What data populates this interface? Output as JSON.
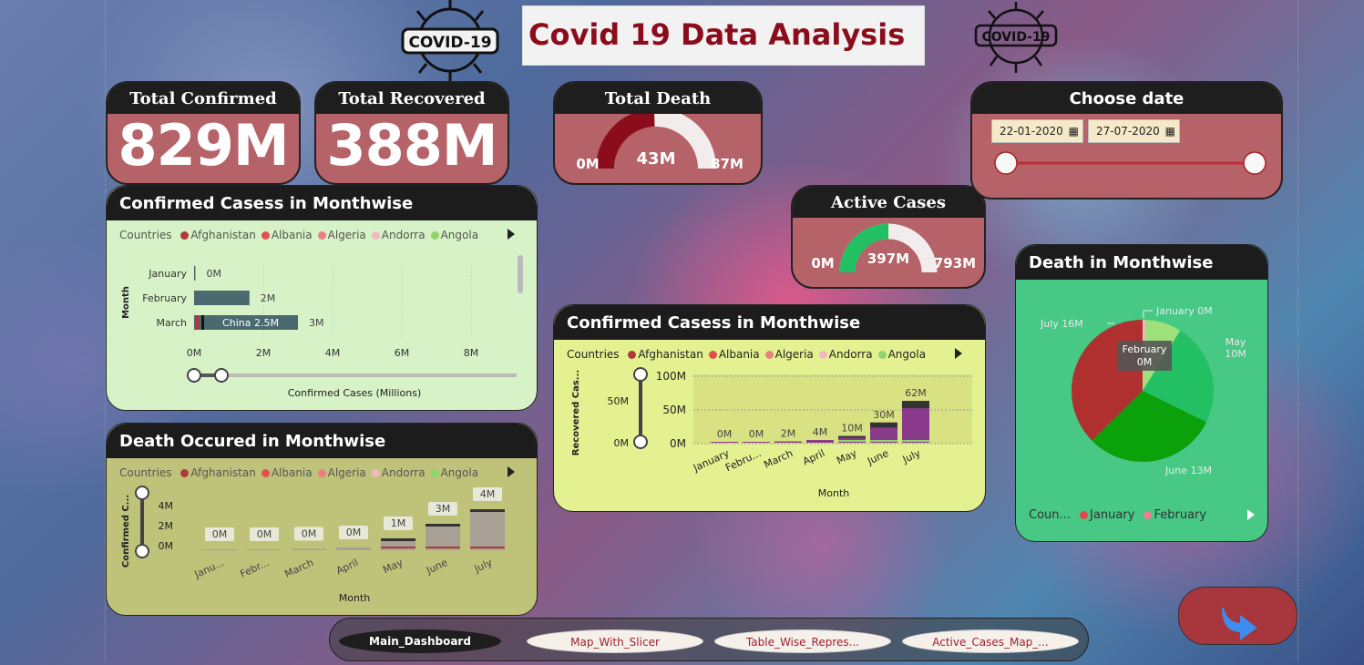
{
  "title": "Covid 19 Data Analysis",
  "logo_text": "COVID-19",
  "kpis": {
    "confirmed": {
      "label": "Total Confirmed",
      "value": "829M"
    },
    "recovered": {
      "label": "Total Recovered",
      "value": "388M"
    },
    "death": {
      "label": "Total Death",
      "min": "0M",
      "value": "43M",
      "max": "87M",
      "fraction": 0.49
    },
    "active": {
      "label": "Active Cases",
      "min": "0M",
      "value": "397M",
      "max": "793M",
      "fraction": 0.5
    }
  },
  "date_slicer": {
    "label": "Choose date",
    "start": "22-01-2020",
    "end": "27-07-2020"
  },
  "legend": {
    "title": "Countries",
    "items": [
      {
        "name": "Afghanistan",
        "color": "#b03a3a"
      },
      {
        "name": "Albania",
        "color": "#e05050"
      },
      {
        "name": "Algeria",
        "color": "#e88080"
      },
      {
        "name": "Andorra",
        "color": "#f0b8c0"
      },
      {
        "name": "Angola",
        "color": "#8fd46f"
      }
    ]
  },
  "confirmed_bar": {
    "title": "Confirmed Casess in Monthwise",
    "tooltip": "China 2.5M",
    "chart_data": {
      "type": "bar",
      "orientation": "horizontal",
      "categories": [
        "January",
        "February",
        "March"
      ],
      "values": [
        0,
        1.6,
        3
      ],
      "data_labels": [
        "0M",
        "2M",
        "3M"
      ],
      "xticks": [
        "0M",
        "2M",
        "4M",
        "6M",
        "8M"
      ],
      "xlim": [
        0,
        8
      ],
      "xlabel": "Confirmed Cases (Millions)",
      "ylabel": "Month"
    }
  },
  "death_col": {
    "title": "Death Occured in Monthwise",
    "chart_data": {
      "type": "bar",
      "categories": [
        "Janu...",
        "Febr...",
        "March",
        "April",
        "May",
        "June",
        "July"
      ],
      "values": [
        0.05,
        0.1,
        0.15,
        0.3,
        1.3,
        2.9,
        4.5
      ],
      "data_labels": [
        "0M",
        "0M",
        "0M",
        "0M",
        "1M",
        "3M",
        "4M"
      ],
      "yticks": [
        "4M",
        "2M",
        "0M"
      ],
      "ylim": [
        0,
        5
      ],
      "xlabel": "Month",
      "ylabel": "Confirmed C..."
    }
  },
  "recovered_col": {
    "title": "Confirmed Casess in Monthwise",
    "chart_data": {
      "type": "bar",
      "categories": [
        "January",
        "Febru...",
        "March",
        "April",
        "May",
        "June",
        "July"
      ],
      "values": [
        0,
        0,
        2,
        4,
        10,
        30,
        62
      ],
      "data_labels": [
        "0M",
        "0M",
        "2M",
        "4M",
        "10M",
        "30M",
        "62M"
      ],
      "yticks": [
        "100M",
        "50M",
        "0M"
      ],
      "ylim": [
        0,
        100
      ],
      "xlabel": "Month",
      "ylabel": "Recovered Cas...",
      "slider_ticks": [
        "50M",
        "0M"
      ]
    }
  },
  "death_pie": {
    "title": "Death in Monthwise",
    "tooltip": {
      "label": "February",
      "value": "0M"
    },
    "legend_title": "Coun...",
    "legend": [
      {
        "name": "January",
        "color": "#e04848"
      },
      {
        "name": "February",
        "color": "#f08090"
      }
    ],
    "chart_data": {
      "type": "pie",
      "slices": [
        {
          "label": "January 0M",
          "value": 0.3,
          "color": "#f0b8c0"
        },
        {
          "label": "February",
          "value": 0.01,
          "color": "#f7f0f0"
        },
        {
          "label": "",
          "value": 3.5,
          "color": "#9ee07a"
        },
        {
          "label": "May\n10M",
          "value": 10,
          "color": "#22c063"
        },
        {
          "label": "June 13M",
          "value": 13,
          "color": "#0aa10a"
        },
        {
          "label": "July 16M",
          "value": 16,
          "color": "#b03030"
        }
      ]
    }
  },
  "nav": {
    "tabs": [
      {
        "label": "Main_Dashboard",
        "active": true
      },
      {
        "label": "Map_With_Slicer",
        "active": false
      },
      {
        "label": "Table_Wise_Repres...",
        "active": false
      },
      {
        "label": "Active_Cases_Map_...",
        "active": false
      }
    ]
  },
  "colors": {
    "kpi_bg": "#b56268",
    "title_red": "#8b0d1c",
    "panel_green": "#d6f2c6",
    "panel_olive": "#bfc37a",
    "panel_lime": "#e4f190",
    "pie_panel": "#47c885"
  }
}
